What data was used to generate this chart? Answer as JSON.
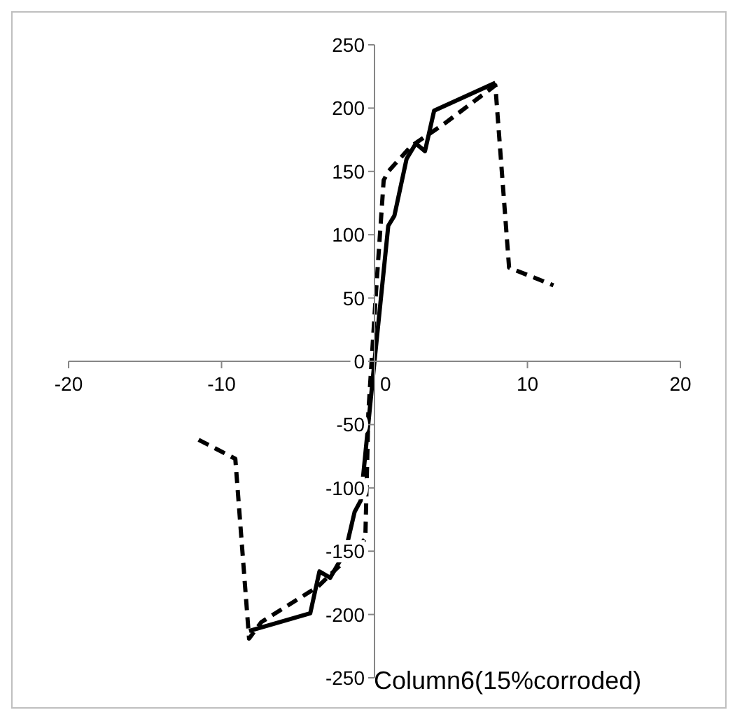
{
  "chart_data": {
    "type": "line",
    "title": "Column6(15%corroded)",
    "xlim": [
      -20,
      20
    ],
    "xticks": [
      -20,
      -10,
      0,
      10,
      20
    ],
    "ylim": [
      -250,
      250
    ],
    "yticks": [
      -250,
      -200,
      -150,
      -100,
      -50,
      0,
      50,
      100,
      150,
      200,
      250
    ],
    "marker": "none",
    "series": [
      {
        "color": "#000000",
        "line_style": "solid",
        "x": [
          -8.2,
          -4.2,
          -3.6,
          -2.9,
          -1.9,
          -1.3,
          -0.9,
          0,
          0.9,
          1.3,
          2.1,
          2.7,
          3.3,
          3.9,
          7.9
        ],
        "values": [
          -213,
          -199,
          -166,
          -171,
          -150,
          -119,
          -110,
          0,
          107,
          115,
          160,
          172,
          166,
          198,
          220
        ]
      },
      {
        "color": "#000000",
        "line_style": "dashed",
        "x": [
          -11.5,
          -9.1,
          -8.2,
          -7.4,
          -3.7,
          -1.3,
          -0.6,
          -0.4,
          0.1,
          0.6,
          0.9,
          2.4,
          4.6,
          7.9,
          8.8,
          11.7
        ],
        "values": [
          -62,
          -77,
          -219,
          -206,
          -178,
          -150,
          -140,
          -40,
          55,
          143,
          150,
          170,
          188,
          218,
          74,
          60
        ]
      }
    ]
  }
}
